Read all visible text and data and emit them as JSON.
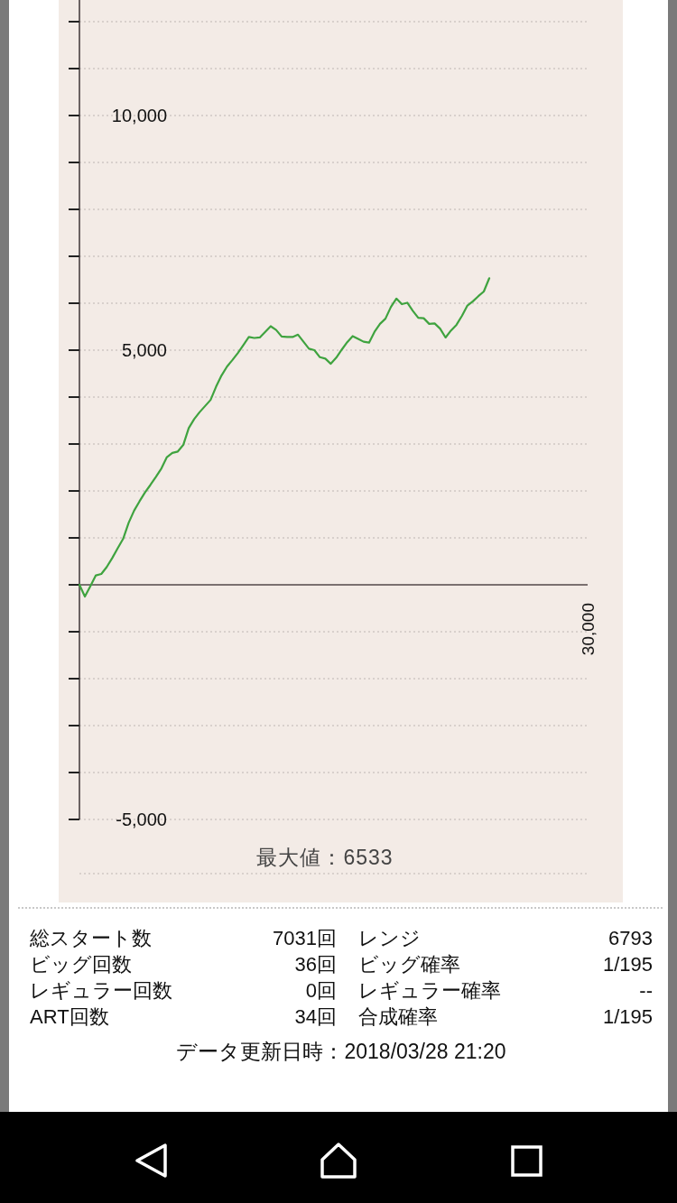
{
  "chart_data": {
    "type": "line",
    "categories": [
      null,
      null,
      null,
      null,
      null,
      null,
      null,
      null,
      null,
      null,
      null,
      null,
      null,
      null,
      null,
      null,
      null,
      null,
      null,
      null,
      null,
      null,
      null,
      null,
      null,
      null,
      null,
      null,
      null,
      null,
      null,
      null,
      null,
      null,
      null,
      null,
      null,
      null,
      null,
      null,
      null,
      null,
      null,
      null,
      null,
      null,
      null,
      null,
      null,
      null,
      null,
      null,
      null,
      null,
      null,
      null,
      null,
      null,
      null,
      null,
      null,
      null,
      null,
      null,
      null,
      null,
      null,
      null,
      null,
      null,
      null,
      null,
      null,
      null,
      null,
      null,
      null,
      null,
      null,
      null,
      null,
      null,
      null,
      null,
      null,
      null,
      null,
      null,
      null,
      null,
      null,
      null,
      null,
      null
    ],
    "series": [
      {
        "color": "#3fa33f",
        "values": [
          0,
          -250,
          -30,
          200,
          230,
          380,
          570,
          780,
          980,
          1320,
          1580,
          1780,
          1970,
          2130,
          2300,
          2480,
          2720,
          2810,
          2840,
          2980,
          3340,
          3530,
          3680,
          3810,
          3940,
          4220,
          4460,
          4650,
          4790,
          4940,
          5110,
          5280,
          5260,
          5270,
          5390,
          5510,
          5430,
          5290,
          5280,
          5280,
          5330,
          5180,
          5030,
          5000,
          4850,
          4820,
          4710,
          4840,
          5010,
          5170,
          5300,
          5240,
          5180,
          5160,
          5390,
          5560,
          5670,
          5920,
          6100,
          5980,
          6010,
          5840,
          5690,
          5680,
          5560,
          5570,
          5460,
          5270,
          5420,
          5540,
          5730,
          5950,
          6040,
          6150,
          6250,
          6533,
          null,
          null,
          null,
          null,
          null,
          null,
          null,
          null,
          null,
          null,
          null,
          null,
          null,
          null,
          null,
          null,
          null,
          null
        ]
      }
    ],
    "ylim": [
      -5000,
      12500
    ],
    "yticks": [
      {
        "value": -5000,
        "label": "-5,000"
      },
      {
        "value": -4000,
        "label": null
      },
      {
        "value": -3000,
        "label": null
      },
      {
        "value": -2000,
        "label": null
      },
      {
        "value": -1000,
        "label": null
      },
      {
        "value": 0,
        "label": null
      },
      {
        "value": 1000,
        "label": null
      },
      {
        "value": 2000,
        "label": null
      },
      {
        "value": 3000,
        "label": null
      },
      {
        "value": 4000,
        "label": null
      },
      {
        "value": 5000,
        "label": "5,000"
      },
      {
        "value": 6000,
        "label": null
      },
      {
        "value": 7000,
        "label": null
      },
      {
        "value": 8000,
        "label": null
      },
      {
        "value": 9000,
        "label": null
      },
      {
        "value": 10000,
        "label": "10,000"
      },
      {
        "value": 11000,
        "label": null
      },
      {
        "value": 12000,
        "label": null
      }
    ],
    "grid": "y",
    "annotations": [
      "30,000",
      "最大値：6533",
      "総スタート数",
      "7031回",
      "レンジ",
      "6793",
      "ビッグ回数",
      "36回",
      "ビッグ確率",
      "1/195",
      "レギュラー回数",
      "0回",
      "レギュラー確率",
      "--",
      "ART回数",
      "34回",
      "合成確率",
      "1/195",
      "データ更新日時：2018/03/28 21:20"
    ]
  }
}
